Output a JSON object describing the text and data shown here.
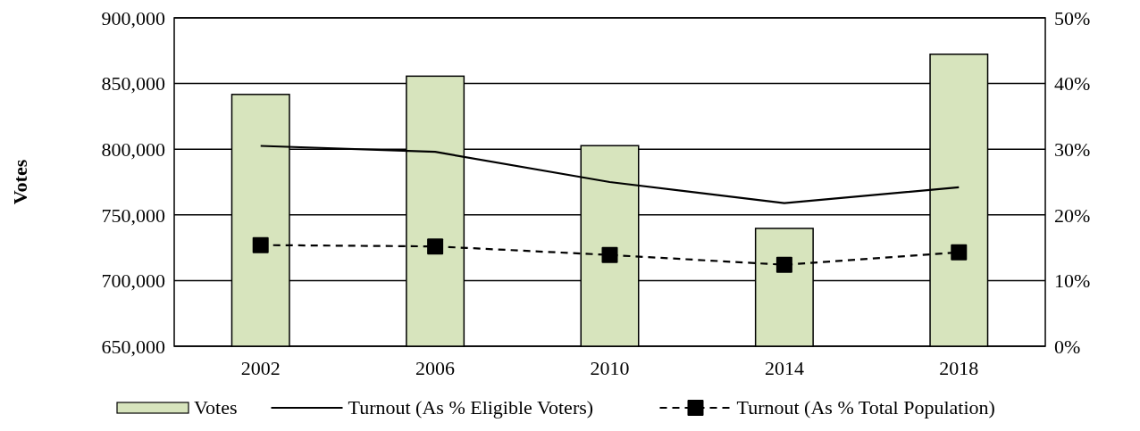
{
  "chart_data": {
    "type": "bar",
    "ylabel": "Votes",
    "categories": [
      "2002",
      "2006",
      "2010",
      "2014",
      "2018"
    ],
    "series": [
      {
        "name": "Votes",
        "color": "#d7e4bd",
        "values": [
          841700,
          855600,
          802700,
          739700,
          872300
        ]
      },
      {
        "name": "Turnout (As % Eligible Voters)",
        "type": "line",
        "axis": "y2",
        "color": "#000000",
        "line_style": "solid",
        "marker": "none",
        "values": [
          30.5,
          29.6,
          25.0,
          21.8,
          24.2
        ]
      },
      {
        "name": "Turnout (As % Total Population)",
        "type": "line",
        "axis": "y2",
        "color": "#000000",
        "line_style": "dashed",
        "marker": "square",
        "values": [
          15.4,
          15.2,
          13.9,
          12.4,
          14.3
        ]
      }
    ],
    "ylim": [
      650000,
      900000
    ],
    "yticks": [
      {
        "value": 650000,
        "label": "650,000"
      },
      {
        "value": 700000,
        "label": "700,000"
      },
      {
        "value": 750000,
        "label": "750,000"
      },
      {
        "value": 800000,
        "label": "800,000"
      },
      {
        "value": 850000,
        "label": "850,000"
      },
      {
        "value": 900000,
        "label": "900,000"
      }
    ],
    "y2lim": [
      0,
      50
    ],
    "y2ticks": [
      {
        "value": 0,
        "label": "0%"
      },
      {
        "value": 10,
        "label": "10%"
      },
      {
        "value": 20,
        "label": "20%"
      },
      {
        "value": 30,
        "label": "30%"
      },
      {
        "value": 40,
        "label": "40%"
      },
      {
        "value": 50,
        "label": "50%"
      }
    ],
    "grid": "y",
    "legend": "bottom"
  }
}
